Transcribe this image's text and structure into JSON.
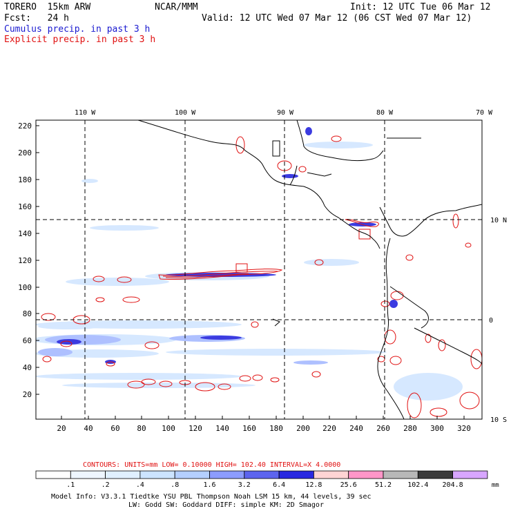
{
  "header": {
    "model": "TORERO  15km ARW",
    "center": "NCAR/MMM",
    "init": "Init: 12 UTC Tue 06 Mar 12",
    "fcst": "Fcst:   24 h",
    "valid": "Valid: 12 UTC Wed 07 Mar 12 (06 CST Wed 07 Mar 12)",
    "legend_cumulus": "Cumulus precip. in past 3 h",
    "legend_explicit": "Explicit precip. in past 3 h"
  },
  "map": {
    "lon_labels": [
      "110 W",
      "100 W",
      "90 W",
      "80 W",
      "70 W"
    ],
    "lat_labels": [
      "10 N",
      "0",
      "10 S"
    ],
    "y_ticks": [
      "20",
      "40",
      "60",
      "80",
      "100",
      "120",
      "140",
      "160",
      "180",
      "200",
      "220"
    ],
    "x_ticks": [
      "20",
      "40",
      "60",
      "80",
      "100",
      "120",
      "140",
      "160",
      "180",
      "200",
      "220",
      "240",
      "260",
      "280",
      "300",
      "320"
    ]
  },
  "contours": {
    "text": "CONTOURS:  UNITS=mm  LOW= 0.10000      HIGH=  102.40      INTERVAL=X  4.0000"
  },
  "colorbar": {
    "labels": [
      ".1",
      ".2",
      ".4",
      ".8",
      "1.6",
      "3.2",
      "6.4",
      "12.8",
      "25.6",
      "51.2",
      "102.4",
      "204.8"
    ],
    "unit": "mm",
    "colors": [
      "#ffffff",
      "#eef6ff",
      "#e0f0ff",
      "#cce4ff",
      "#b4cfff",
      "#8c9cff",
      "#5c64ee",
      "#2828e0",
      "#ffd4d4",
      "#ff96c8",
      "#b8b8b8",
      "#3a3a3a",
      "#d8a6ff"
    ]
  },
  "footer": {
    "line1": "Model Info: V3.3.1    Tiedtke YSU PBL  Thompson    Noah LSM  15 km,   44 levels,   39 sec",
    "line2": "LW: Godd SW: Goddard DIFF: simple KM: 2D Smagor"
  }
}
